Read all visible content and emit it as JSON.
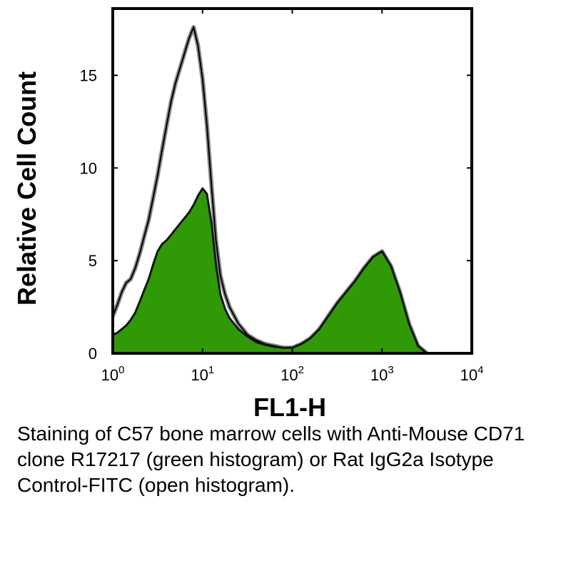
{
  "chart_data": {
    "type": "area",
    "xlabel": "FL1-H",
    "ylabel": "Relative Cell Count",
    "x_scale": "log",
    "xlim": [
      1,
      10000
    ],
    "ylim": [
      0,
      18.6
    ],
    "x_ticks": [
      {
        "value": 1,
        "base": "10",
        "exp": "0"
      },
      {
        "value": 10,
        "base": "10",
        "exp": "1"
      },
      {
        "value": 100,
        "base": "10",
        "exp": "2"
      },
      {
        "value": 1000,
        "base": "10",
        "exp": "3"
      },
      {
        "value": 10000,
        "base": "10",
        "exp": "4"
      }
    ],
    "y_ticks": [
      0,
      5,
      10,
      15
    ],
    "grid": false,
    "series": [
      {
        "style": "open histogram",
        "color": "#000000",
        "x": [
          1,
          1.12,
          1.26,
          1.41,
          1.58,
          1.78,
          2.0,
          2.24,
          2.51,
          2.82,
          3.16,
          3.55,
          3.98,
          4.47,
          5.01,
          5.62,
          6.31,
          7.08,
          7.94,
          8.91,
          10.0,
          11.2,
          12.6,
          14.1,
          15.8,
          17.8,
          20.0,
          25.1,
          31.6,
          39.8,
          50.1,
          63.1,
          79.4,
          100,
          126,
          158,
          200,
          251,
          316,
          398,
          501,
          631,
          794,
          1000,
          1259,
          1585,
          1995,
          2512,
          3162
        ],
        "y": [
          2.0,
          2.6,
          3.3,
          3.8,
          4.0,
          4.6,
          5.4,
          6.3,
          7.2,
          8.4,
          9.6,
          11.0,
          12.3,
          13.6,
          14.6,
          15.4,
          16.2,
          17.0,
          17.6,
          16.6,
          14.8,
          12.3,
          9.0,
          6.1,
          4.2,
          3.2,
          2.5,
          1.6,
          1.0,
          0.7,
          0.5,
          0.4,
          0.3,
          0.3,
          0.5,
          0.8,
          1.3,
          2.0,
          2.7,
          3.3,
          3.9,
          4.6,
          5.2,
          5.5,
          4.7,
          3.3,
          1.6,
          0.4,
          0
        ]
      },
      {
        "style": "filled histogram",
        "color": "#2f9a06",
        "x": [
          1,
          1.12,
          1.26,
          1.41,
          1.58,
          1.78,
          2.0,
          2.24,
          2.51,
          2.82,
          3.16,
          3.55,
          3.98,
          4.47,
          5.01,
          5.62,
          6.31,
          7.08,
          7.94,
          8.91,
          10.0,
          11.2,
          12.6,
          14.1,
          15.8,
          17.8,
          20.0,
          25.1,
          31.6,
          39.8,
          50.1,
          63.1,
          79.4,
          100,
          126,
          158,
          200,
          251,
          316,
          398,
          501,
          631,
          794,
          1000,
          1259,
          1585,
          1995,
          2512,
          3162
        ],
        "y": [
          1.0,
          1.1,
          1.3,
          1.5,
          1.8,
          2.2,
          2.8,
          3.4,
          4.0,
          4.8,
          5.5,
          5.9,
          6.1,
          6.4,
          6.7,
          7.0,
          7.3,
          7.6,
          8.0,
          8.5,
          8.9,
          8.6,
          7.0,
          4.8,
          3.2,
          2.4,
          1.9,
          1.3,
          0.9,
          0.6,
          0.45,
          0.35,
          0.3,
          0.3,
          0.5,
          0.8,
          1.3,
          2.0,
          2.7,
          3.3,
          3.9,
          4.6,
          5.2,
          5.5,
          4.7,
          3.3,
          1.6,
          0.4,
          0
        ]
      }
    ]
  },
  "caption": "Staining of C57 bone marrow cells with Anti-Mouse CD71 clone R17217 (green histogram) or Rat IgG2a Isotype Control-FITC (open histogram)."
}
